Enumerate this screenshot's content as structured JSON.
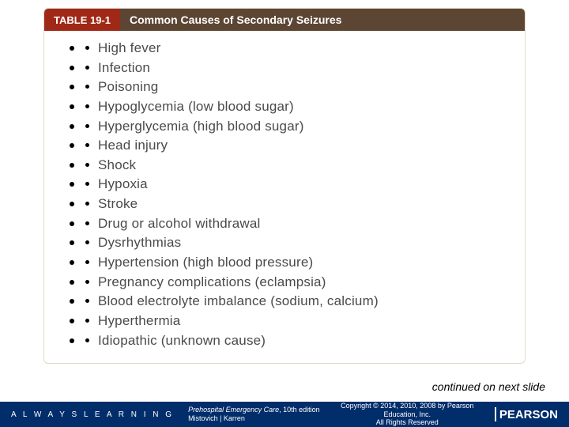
{
  "colors": {
    "header_label_bg": "#a02817",
    "header_title_bg": "#5c4633",
    "box_border": "#e2d8c8",
    "footer_bg": "#012d6a",
    "text_body": "#4a4a4a",
    "text_white": "#ffffff"
  },
  "table": {
    "label": "TABLE 19-1",
    "title": "Common Causes of Secondary Seizures",
    "items": [
      "High fever",
      "Infection",
      "Poisoning",
      "Hypoglycemia (low blood sugar)",
      "Hyperglycemia (high blood sugar)",
      "Head injury",
      "Shock",
      "Hypoxia",
      "Stroke",
      "Drug or alcohol withdrawal",
      "Dysrhythmias",
      "Hypertension (high blood pressure)",
      "Pregnancy complications (eclampsia)",
      "Blood electrolyte imbalance (sodium, calcium)",
      "Hyperthermia",
      "Idiopathic (unknown cause)"
    ]
  },
  "continued_text": "continued on next slide",
  "footer": {
    "always_learning": "A L W A Y S  L E A R N I N G",
    "book_title": "Prehospital Emergency Care",
    "book_edition": ", 10th edition",
    "book_authors": "Mistovich | Karren",
    "copyright_line1": "Copyright © 2014, 2010, 2008 by Pearson Education, Inc.",
    "copyright_line2": "All Rights Reserved",
    "brand": "PEARSON"
  }
}
